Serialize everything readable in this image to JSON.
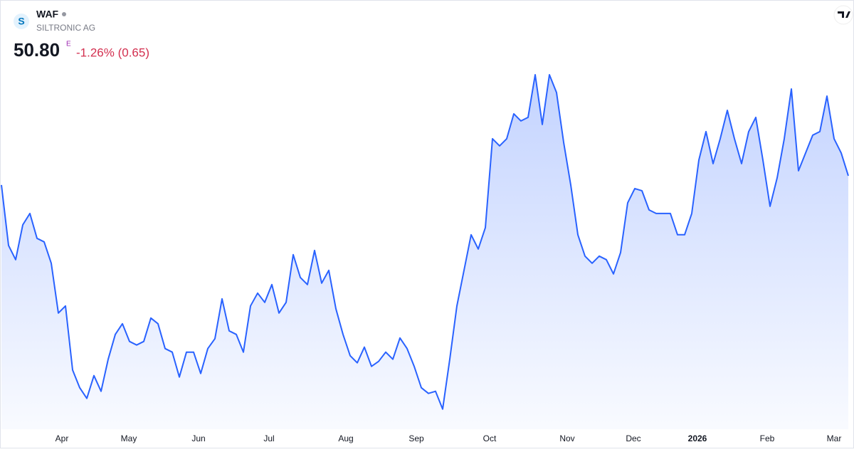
{
  "chart_data": {
    "type": "area",
    "ticker": "WAF",
    "company": "SILTRONIC AG",
    "price": "50.80",
    "price_flag": "E",
    "change": "-1.26% (0.65)",
    "series": [
      {
        "name": "WAF",
        "color": "#2962ff",
        "values": [
          50.02,
          44.92,
          43.72,
          46.66,
          47.62,
          45.52,
          45.22,
          43.42,
          39.22,
          39.82,
          34.42,
          32.92,
          32.02,
          33.94,
          32.62,
          35.32,
          37.42,
          38.32,
          36.82,
          36.52,
          36.82,
          38.8,
          38.32,
          36.22,
          35.92,
          33.82,
          35.92,
          35.92,
          34.12,
          36.22,
          37.06,
          40.42,
          37.72,
          37.42,
          35.92,
          39.82,
          40.9,
          40.12,
          41.62,
          39.22,
          40.12,
          44.14,
          42.22,
          41.62,
          44.5,
          41.74,
          42.82,
          39.58,
          37.42,
          35.62,
          35.02,
          36.34,
          34.72,
          35.14,
          35.92,
          35.32,
          37.12,
          36.22,
          34.72,
          32.92,
          32.44,
          32.62,
          31.12,
          35.32,
          39.82,
          42.82,
          45.82,
          44.62,
          46.42,
          53.92,
          53.32,
          53.92,
          56.02,
          55.42,
          55.72,
          59.32,
          55.12,
          59.32,
          57.82,
          53.62,
          50.02,
          45.82,
          44.02,
          43.42,
          44.02,
          43.72,
          42.52,
          44.32,
          48.52,
          49.72,
          49.54,
          47.92,
          47.62,
          47.62,
          47.62,
          45.82,
          45.82,
          47.62,
          52.12,
          54.52,
          51.82,
          53.92,
          56.32,
          53.92,
          51.82,
          54.52,
          55.72,
          52.12,
          48.22,
          50.62,
          53.92,
          58.12,
          51.22,
          52.72,
          54.22,
          54.52,
          57.52,
          53.92,
          52.72,
          50.8
        ]
      }
    ],
    "xlim": [
      0,
      119
    ],
    "ylim": [
      29,
      61
    ],
    "xticks": [
      {
        "value": 8.5,
        "label": "Apr"
      },
      {
        "value": 17.9,
        "label": "May"
      },
      {
        "value": 27.7,
        "label": "Jun"
      },
      {
        "value": 37.6,
        "label": "Jul"
      },
      {
        "value": 48.4,
        "label": "Aug"
      },
      {
        "value": 58.3,
        "label": "Sep"
      },
      {
        "value": 68.6,
        "label": "Oct"
      },
      {
        "value": 79.5,
        "label": "Nov"
      },
      {
        "value": 88.8,
        "label": "Dec"
      },
      {
        "value": 97.8,
        "label": "2026"
      },
      {
        "value": 107.6,
        "label": "Feb"
      },
      {
        "value": 117,
        "label": "Mar"
      }
    ]
  }
}
